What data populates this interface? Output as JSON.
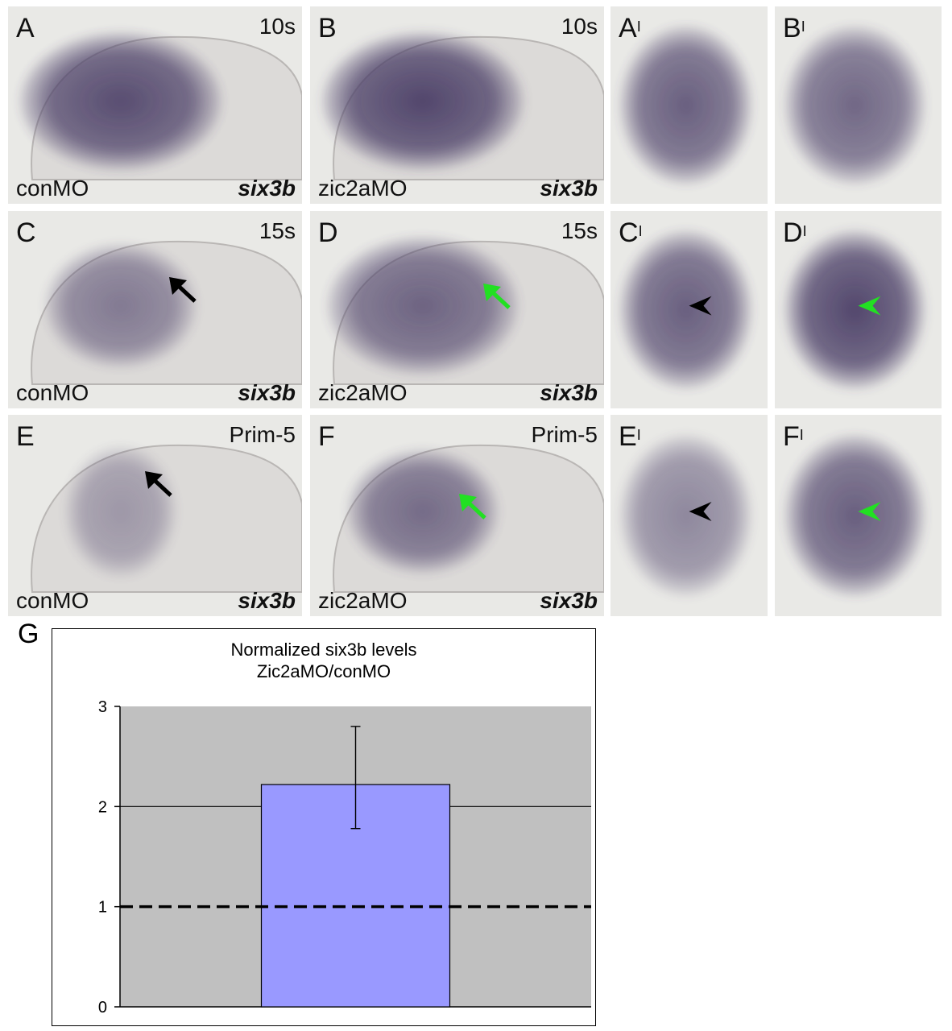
{
  "panels": [
    {
      "id": "A",
      "label": "A",
      "prime": "",
      "stage": "10s",
      "mo": "conMO",
      "gene": "six3b"
    },
    {
      "id": "B",
      "label": "B",
      "prime": "",
      "stage": "10s",
      "mo": "zic2aMO",
      "gene": "six3b"
    },
    {
      "id": "A1",
      "label": "A",
      "prime": "I",
      "stage": "",
      "mo": "",
      "gene": ""
    },
    {
      "id": "B1",
      "label": "B",
      "prime": "I",
      "stage": "",
      "mo": "",
      "gene": ""
    },
    {
      "id": "C",
      "label": "C",
      "prime": "",
      "stage": "15s",
      "mo": "conMO",
      "gene": "six3b"
    },
    {
      "id": "D",
      "label": "D",
      "prime": "",
      "stage": "15s",
      "mo": "zic2aMO",
      "gene": "six3b"
    },
    {
      "id": "C1",
      "label": "C",
      "prime": "I",
      "stage": "",
      "mo": "",
      "gene": ""
    },
    {
      "id": "D1",
      "label": "D",
      "prime": "I",
      "stage": "",
      "mo": "",
      "gene": ""
    },
    {
      "id": "E",
      "label": "E",
      "prime": "",
      "stage": "Prim-5",
      "mo": "conMO",
      "gene": "six3b"
    },
    {
      "id": "F",
      "label": "F",
      "prime": "",
      "stage": "Prim-5",
      "mo": "zic2aMO",
      "gene": "six3b"
    },
    {
      "id": "E1",
      "label": "E",
      "prime": "I",
      "stage": "",
      "mo": "",
      "gene": ""
    },
    {
      "id": "F1",
      "label": "F",
      "prime": "I",
      "stage": "",
      "mo": "",
      "gene": ""
    }
  ],
  "colors": {
    "tissue": "#4a3e66",
    "background": "#e9e9e6",
    "arrow_control": "#000000",
    "arrow_morphant": "#22e022",
    "bar_fill": "#9999ff",
    "plot_area": "#c0c0c0"
  },
  "chart": {
    "panel_label": "G",
    "title_line1": "Normalized six3b levels",
    "title_line2": "Zic2aMO/conMO"
  },
  "chart_data": {
    "type": "bar",
    "title": "Normalized six3b levels Zic2aMO/conMO",
    "categories": [
      ""
    ],
    "values": [
      2.22
    ],
    "error": {
      "low": 1.78,
      "high": 2.8
    },
    "reference_line": 1,
    "ylim": [
      0,
      3
    ],
    "yticks": [
      0,
      1,
      2,
      3
    ],
    "gridlines": [
      2
    ],
    "xlabel": "",
    "ylabel": "",
    "legend": "none"
  }
}
